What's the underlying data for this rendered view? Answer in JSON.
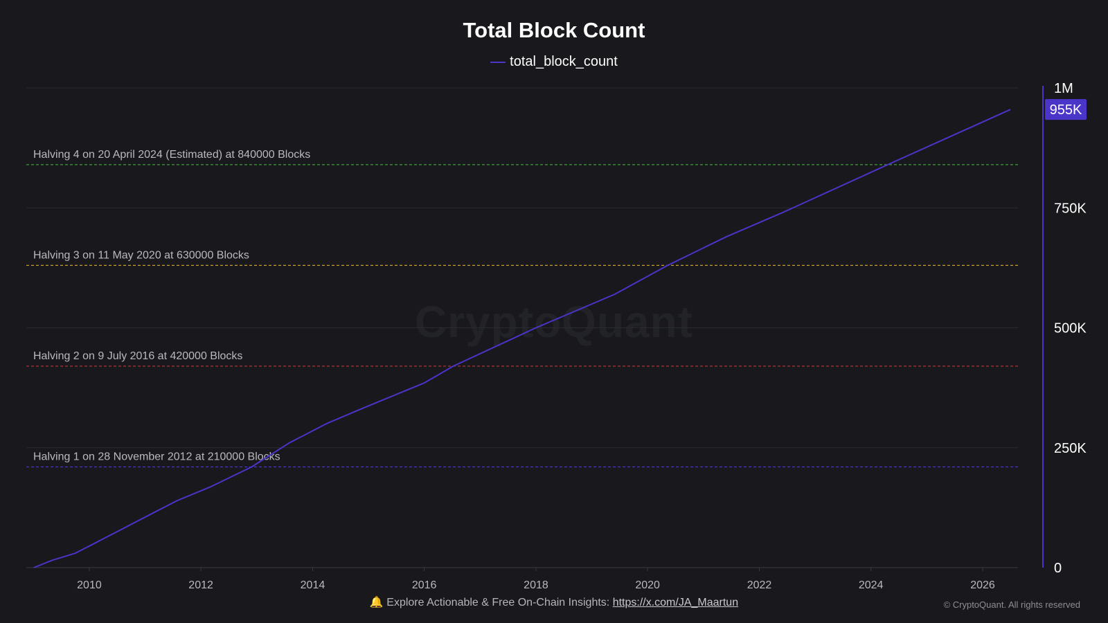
{
  "chart_data": {
    "type": "line",
    "title": "Total Block Count",
    "xlabel": "",
    "ylabel": "",
    "ylim": [
      0,
      1000000
    ],
    "xlim": [
      "2008-11-15",
      "2026-08-20"
    ],
    "x_ticks": [
      "2010",
      "2012",
      "2014",
      "2016",
      "2018",
      "2020",
      "2022",
      "2024",
      "2026"
    ],
    "y_ticks": [
      {
        "value": 0,
        "label": "0"
      },
      {
        "value": 250000,
        "label": "250K"
      },
      {
        "value": 500000,
        "label": "500K"
      },
      {
        "value": 750000,
        "label": "750K"
      },
      {
        "value": 1000000,
        "label": "1M"
      }
    ],
    "grid": true,
    "legend_position": "top-center",
    "y_axis_position": "right",
    "series": [
      {
        "name": "total_block_count",
        "color": "#4a35c9",
        "x": [
          "2009-01-03",
          "2009-05-01",
          "2009-10-01",
          "2010-01-01",
          "2010-08-01",
          "2011-03-01",
          "2011-08-01",
          "2012-03-01",
          "2012-11-28",
          "2013-08-01",
          "2014-04-01",
          "2014-12-01",
          "2016-01-01",
          "2016-07-09",
          "2018-01-01",
          "2019-06-01",
          "2020-05-11",
          "2021-06-01",
          "2022-06-01",
          "2024-04-20",
          "2026-07-01"
        ],
        "values": [
          0,
          15000,
          30000,
          45000,
          80000,
          115000,
          140000,
          168000,
          210000,
          260000,
          300000,
          333000,
          385000,
          420000,
          500000,
          570000,
          630000,
          690000,
          740000,
          840000,
          955000
        ]
      }
    ],
    "reference_lines": [
      {
        "value": 210000,
        "color": "#4a35c9",
        "label": "Halving 1 on 28 November 2012 at 210000 Blocks"
      },
      {
        "value": 420000,
        "color": "#c0363b",
        "label": "Halving 2 on 9 July 2016 at 420000 Blocks"
      },
      {
        "value": 630000,
        "color": "#c9a030",
        "label": "Halving 3 on 11 May 2020 at 630000 Blocks"
      },
      {
        "value": 840000,
        "color": "#3ca03c",
        "label": "Halving 4 on 20 April 2024 (Estimated) at 840000 Blocks"
      }
    ],
    "last_value_badge": "955K"
  },
  "watermark": "CryptoQuant",
  "footer": {
    "bell": "🔔",
    "text": "Explore Actionable & Free On-Chain Insights:",
    "link": "https://x.com/JA_Maartun"
  },
  "copyright": "© CryptoQuant. All rights reserved",
  "colors": {
    "background": "#18181d",
    "grid": "#2a2a31",
    "axis": "#4a35c9",
    "badge": "#4a35c9"
  }
}
